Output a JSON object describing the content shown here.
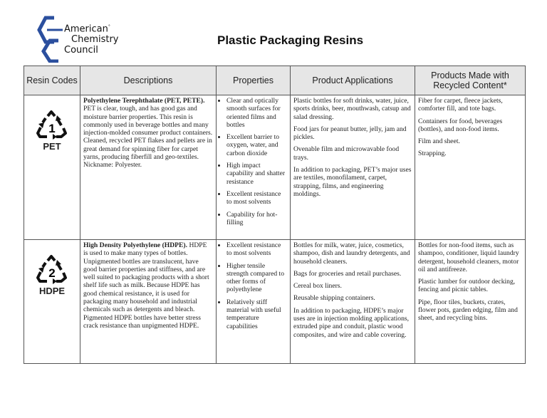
{
  "logo": {
    "line1": "American",
    "line2": "Chemistry",
    "line3": "Council",
    "mark": "°",
    "color": "#2b4f9e"
  },
  "title": "Plastic Packaging Resins",
  "table": {
    "headers": [
      "Resin Codes",
      "Descriptions",
      "Properties",
      "Product Applications",
      "Products Made with Recycled Content*"
    ],
    "rows": [
      {
        "code_number": "1",
        "code_label": "PET",
        "icon": "recycle-triangle-icon",
        "description_title": "Polyethylene Terephthalate (PET, PETE).",
        "description": "PET is clear, tough, and has good gas and moisture barrier properties. This resin is commonly used in beverage bottles and many injection-molded consumer product containers. Cleaned, recycled PET flakes and pellets are in great demand for spinning fiber for carpet yarns, producing fiberfill and geo-textiles. Nickname: Polyester.",
        "properties": [
          "Clear and optically smooth surfaces for oriented films and bottles",
          "Excellent barrier to oxygen, water, and carbon dioxide",
          "High impact capability and shatter resistance",
          "Excellent resistance to most solvents",
          "Capability for hot-filling"
        ],
        "applications": [
          "Plastic bottles for soft drinks, water, juice, sports drinks, beer, mouthwash, catsup and salad dressing.",
          "Food jars for peanut butter, jelly, jam and pickles.",
          "Ovenable film and microwavable food trays.",
          "In addition to packaging, PET’s major uses are textiles, monofilament, carpet, strapping, films, and engineering moldings."
        ],
        "recycled": [
          "Fiber for carpet, fleece jackets, comforter fill, and tote bags.",
          "Containers for food, beverages (bottles), and non-food items.",
          "Film and sheet.",
          "Strapping."
        ]
      },
      {
        "code_number": "2",
        "code_label": "HDPE",
        "icon": "recycle-triangle-icon",
        "description_title": "High Density Polyethylene (HDPE).",
        "description": "HDPE is used to make many types of bottles. Unpigmented bottles are translucent, have good barrier properties and stiffness, and are well suited to packaging products with a short shelf life such as milk. Because HDPE has good chemical resistance, it is used for packaging many household and industrial chemicals such as detergents and bleach. Pigmented HDPE bottles have better stress crack resistance than unpigmented HDPE.",
        "properties": [
          "Excellent resistance to most solvents",
          "Higher tensile strength compared to other forms of polyethylene",
          "Relatively stiff material with useful temperature capabilities"
        ],
        "applications": [
          "Bottles for milk, water, juice, cosmetics, shampoo, dish and laundry detergents, and household cleaners.",
          "Bags for groceries and retail purchases.",
          "Cereal box liners.",
          "Reusable shipping containers.",
          "In addition to packaging, HDPE’s major uses are in injection molding applications, extruded pipe and conduit, plastic wood composites, and wire and cable covering."
        ],
        "recycled": [
          "Bottles for non-food items, such as shampoo, conditioner, liquid laundry detergent, household cleaners, motor oil and antifreeze.",
          "Plastic lumber for outdoor decking, fencing and picnic tables.",
          "Pipe, floor tiles, buckets, crates, flower pots, garden edging, film and sheet, and recycling bins."
        ]
      }
    ]
  }
}
